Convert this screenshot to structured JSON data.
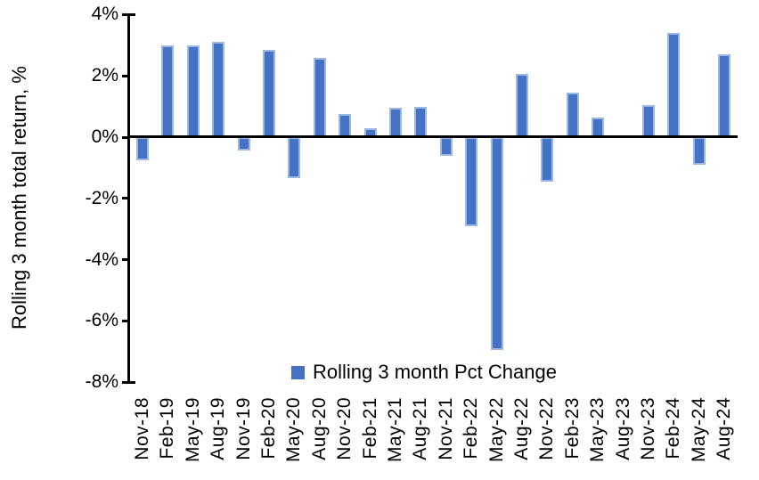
{
  "chart_data": {
    "type": "bar",
    "title": "",
    "xlabel": "",
    "ylabel": "Rolling 3 month total return, %",
    "ylim": [
      -8,
      4
    ],
    "grid": false,
    "legend_position": "bottom-center-inside",
    "yticks": [
      4,
      2,
      0,
      -2,
      -4,
      -6,
      -8
    ],
    "ytick_labels": [
      "4%",
      "2%",
      "0%",
      "-2%",
      "-4%",
      "-6%",
      "-8%"
    ],
    "categories": [
      "Nov-18",
      "Feb-19",
      "May-19",
      "Aug-19",
      "Nov-19",
      "Feb-20",
      "May-20",
      "Aug-20",
      "Nov-20",
      "Feb-21",
      "May-21",
      "Aug-21",
      "Nov-21",
      "Feb-22",
      "May-22",
      "Aug-22",
      "Nov-22",
      "Feb-23",
      "May-23",
      "Aug-23",
      "Nov-23",
      "Feb-24",
      "May-24",
      "Aug-24"
    ],
    "series": [
      {
        "name": "Rolling 3 month Pct Change",
        "values": [
          -0.75,
          3.0,
          3.0,
          3.1,
          -0.45,
          2.85,
          -1.35,
          2.6,
          0.75,
          0.3,
          0.95,
          1.0,
          -0.6,
          -2.9,
          -6.95,
          2.05,
          -1.45,
          1.45,
          0.65,
          0.0,
          1.05,
          3.4,
          -0.9,
          2.7
        ]
      }
    ],
    "legend": [
      {
        "label": "Rolling 3 month Pct Change",
        "color": "#4472C4"
      }
    ],
    "bar_color": "#4472C4",
    "bar_border_color": "#9DB7E3",
    "axis_color": "#000000"
  }
}
